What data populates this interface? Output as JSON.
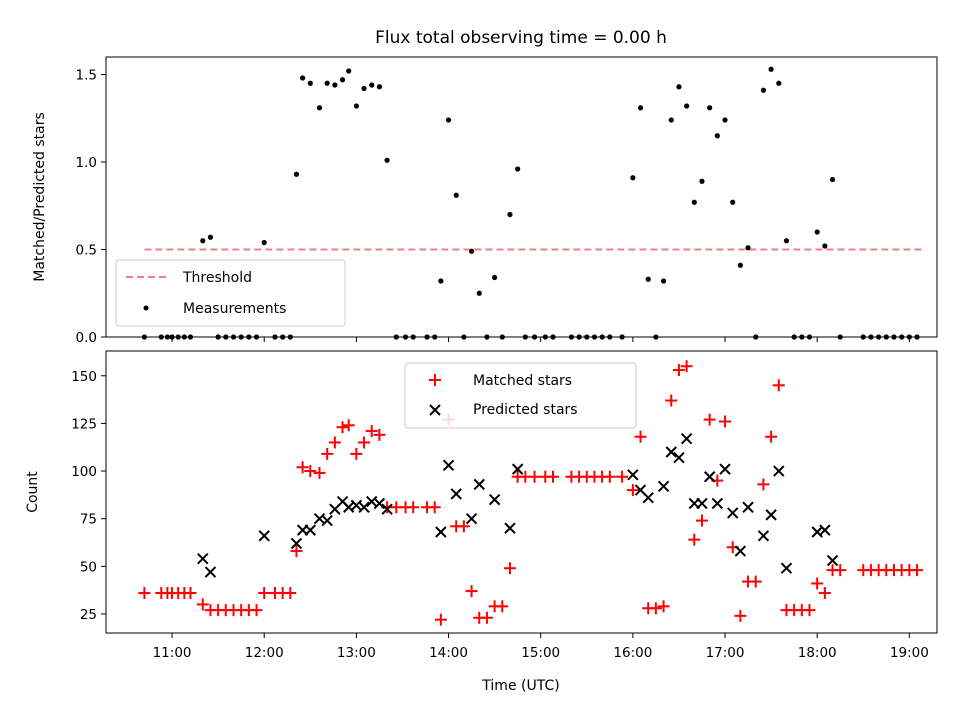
{
  "chart_data": [
    {
      "type": "scatter",
      "title": "Flux total observing time = 0.00 h",
      "xlabel": "",
      "ylabel": "Matched/Predicted stars",
      "ylim": [
        0,
        1.6
      ],
      "xlim": [
        "10:17",
        "19:18"
      ],
      "yticks": [
        "0.0",
        "0.5",
        "1.0",
        "1.5"
      ],
      "grid": false,
      "legend": "lower-left",
      "threshold": {
        "name": "Threshold",
        "value": 0.5,
        "x_from": "10:42",
        "x_to": "19:09",
        "color": "#f08080"
      },
      "series": [
        {
          "name": "Measurements",
          "color": "#000000",
          "marker": "dot",
          "points": [
            [
              "10:42",
              0
            ],
            [
              "10:53",
              0
            ],
            [
              "10:57",
              0
            ],
            [
              "11:00",
              0
            ],
            [
              "11:04",
              0
            ],
            [
              "11:08",
              0
            ],
            [
              "11:12",
              0
            ],
            [
              "11:20",
              0.55
            ],
            [
              "11:25",
              0.57
            ],
            [
              "11:30",
              0
            ],
            [
              "11:35",
              0
            ],
            [
              "11:40",
              0
            ],
            [
              "11:45",
              0
            ],
            [
              "11:50",
              0
            ],
            [
              "11:55",
              0
            ],
            [
              "12:00",
              0.54
            ],
            [
              "12:07",
              0
            ],
            [
              "12:12",
              0
            ],
            [
              "12:17",
              0
            ],
            [
              "12:21",
              0.93
            ],
            [
              "12:25",
              1.48
            ],
            [
              "12:30",
              1.45
            ],
            [
              "12:36",
              1.31
            ],
            [
              "12:41",
              1.45
            ],
            [
              "12:46",
              1.44
            ],
            [
              "12:51",
              1.47
            ],
            [
              "12:55",
              1.52
            ],
            [
              "13:00",
              1.32
            ],
            [
              "13:05",
              1.42
            ],
            [
              "13:10",
              1.44
            ],
            [
              "13:15",
              1.43
            ],
            [
              "13:20",
              1.01
            ],
            [
              "13:26",
              0
            ],
            [
              "13:32",
              0
            ],
            [
              "13:37",
              0
            ],
            [
              "13:46",
              0
            ],
            [
              "13:51",
              0
            ],
            [
              "13:55",
              0.32
            ],
            [
              "14:00",
              1.24
            ],
            [
              "14:05",
              0.81
            ],
            [
              "14:10",
              0
            ],
            [
              "14:15",
              0.49
            ],
            [
              "14:20",
              0.25
            ],
            [
              "14:25",
              0
            ],
            [
              "14:30",
              0.34
            ],
            [
              "14:35",
              0
            ],
            [
              "14:40",
              0.7
            ],
            [
              "14:45",
              0.96
            ],
            [
              "14:50",
              0
            ],
            [
              "14:56",
              0
            ],
            [
              "15:03",
              0
            ],
            [
              "15:08",
              0
            ],
            [
              "15:20",
              0
            ],
            [
              "15:25",
              0
            ],
            [
              "15:30",
              0
            ],
            [
              "15:35",
              0
            ],
            [
              "15:40",
              0
            ],
            [
              "15:45",
              0
            ],
            [
              "15:53",
              0
            ],
            [
              "16:00",
              0.91
            ],
            [
              "16:05",
              1.31
            ],
            [
              "16:10",
              0.33
            ],
            [
              "16:15",
              0
            ],
            [
              "16:20",
              0.32
            ],
            [
              "16:25",
              1.24
            ],
            [
              "16:30",
              1.43
            ],
            [
              "16:35",
              1.32
            ],
            [
              "16:40",
              0.77
            ],
            [
              "16:45",
              0.89
            ],
            [
              "16:50",
              1.31
            ],
            [
              "16:55",
              1.15
            ],
            [
              "17:00",
              1.24
            ],
            [
              "17:05",
              0.77
            ],
            [
              "17:10",
              0.41
            ],
            [
              "17:15",
              0.51
            ],
            [
              "17:20",
              0
            ],
            [
              "17:25",
              1.41
            ],
            [
              "17:30",
              1.53
            ],
            [
              "17:35",
              1.45
            ],
            [
              "17:40",
              0.55
            ],
            [
              "17:45",
              0
            ],
            [
              "17:50",
              0
            ],
            [
              "17:55",
              0
            ],
            [
              "18:00",
              0.6
            ],
            [
              "18:05",
              0.52
            ],
            [
              "18:10",
              0.9
            ],
            [
              "18:15",
              0
            ],
            [
              "18:30",
              0
            ],
            [
              "18:35",
              0
            ],
            [
              "18:40",
              0
            ],
            [
              "18:45",
              0
            ],
            [
              "18:50",
              0
            ],
            [
              "18:55",
              0
            ],
            [
              "19:00",
              0
            ],
            [
              "19:05",
              0
            ]
          ]
        }
      ]
    },
    {
      "type": "scatter",
      "title": "",
      "xlabel": "Time (UTC)",
      "ylabel": "Count",
      "ylim": [
        15,
        163
      ],
      "xlim": [
        "10:17",
        "19:18"
      ],
      "xticks": [
        "11:00",
        "12:00",
        "13:00",
        "14:00",
        "15:00",
        "16:00",
        "17:00",
        "18:00",
        "19:00"
      ],
      "yticks": [
        "25",
        "50",
        "75",
        "100",
        "125",
        "150"
      ],
      "grid": false,
      "legend": "top-center",
      "series": [
        {
          "name": "Matched stars",
          "color": "#ff0000",
          "marker": "plus",
          "points": [
            [
              "10:42",
              36
            ],
            [
              "10:53",
              36
            ],
            [
              "10:57",
              36
            ],
            [
              "11:00",
              36
            ],
            [
              "11:04",
              36
            ],
            [
              "11:08",
              36
            ],
            [
              "11:12",
              36
            ],
            [
              "11:20",
              30
            ],
            [
              "11:25",
              27
            ],
            [
              "11:30",
              27
            ],
            [
              "11:35",
              27
            ],
            [
              "11:40",
              27
            ],
            [
              "11:45",
              27
            ],
            [
              "11:50",
              27
            ],
            [
              "11:55",
              27
            ],
            [
              "12:00",
              36
            ],
            [
              "12:07",
              36
            ],
            [
              "12:12",
              36
            ],
            [
              "12:17",
              36
            ],
            [
              "12:21",
              58
            ],
            [
              "12:25",
              102
            ],
            [
              "12:30",
              100
            ],
            [
              "12:36",
              99
            ],
            [
              "12:41",
              109
            ],
            [
              "12:46",
              115
            ],
            [
              "12:51",
              123
            ],
            [
              "12:55",
              124
            ],
            [
              "13:00",
              109
            ],
            [
              "13:05",
              115
            ],
            [
              "13:10",
              121
            ],
            [
              "13:15",
              119
            ],
            [
              "13:20",
              81
            ],
            [
              "13:26",
              81
            ],
            [
              "13:32",
              81
            ],
            [
              "13:37",
              81
            ],
            [
              "13:46",
              81
            ],
            [
              "13:51",
              81
            ],
            [
              "13:55",
              22
            ],
            [
              "14:00",
              127
            ],
            [
              "14:05",
              71
            ],
            [
              "14:10",
              71
            ],
            [
              "14:15",
              37
            ],
            [
              "14:20",
              23
            ],
            [
              "14:25",
              23
            ],
            [
              "14:30",
              29
            ],
            [
              "14:35",
              29
            ],
            [
              "14:40",
              49
            ],
            [
              "14:45",
              97
            ],
            [
              "14:50",
              97
            ],
            [
              "14:56",
              97
            ],
            [
              "15:03",
              97
            ],
            [
              "15:08",
              97
            ],
            [
              "15:20",
              97
            ],
            [
              "15:25",
              97
            ],
            [
              "15:30",
              97
            ],
            [
              "15:35",
              97
            ],
            [
              "15:40",
              97
            ],
            [
              "15:45",
              97
            ],
            [
              "15:53",
              97
            ],
            [
              "16:00",
              90
            ],
            [
              "16:05",
              118
            ],
            [
              "16:10",
              28
            ],
            [
              "16:15",
              28
            ],
            [
              "16:20",
              29
            ],
            [
              "16:25",
              137
            ],
            [
              "16:30",
              153
            ],
            [
              "16:35",
              155
            ],
            [
              "16:40",
              64
            ],
            [
              "16:45",
              74
            ],
            [
              "16:50",
              127
            ],
            [
              "16:55",
              95
            ],
            [
              "17:00",
              126
            ],
            [
              "17:05",
              60
            ],
            [
              "17:10",
              24
            ],
            [
              "17:15",
              42
            ],
            [
              "17:20",
              42
            ],
            [
              "17:25",
              93
            ],
            [
              "17:30",
              118
            ],
            [
              "17:35",
              145
            ],
            [
              "17:40",
              27
            ],
            [
              "17:45",
              27
            ],
            [
              "17:50",
              27
            ],
            [
              "17:55",
              27
            ],
            [
              "18:00",
              41
            ],
            [
              "18:05",
              36
            ],
            [
              "18:10",
              48
            ],
            [
              "18:15",
              48
            ],
            [
              "18:30",
              48
            ],
            [
              "18:35",
              48
            ],
            [
              "18:40",
              48
            ],
            [
              "18:45",
              48
            ],
            [
              "18:50",
              48
            ],
            [
              "18:55",
              48
            ],
            [
              "19:00",
              48
            ],
            [
              "19:05",
              48
            ]
          ]
        },
        {
          "name": "Predicted stars",
          "color": "#000000",
          "marker": "x",
          "points": [
            [
              "11:20",
              54
            ],
            [
              "11:25",
              47
            ],
            [
              "12:00",
              66
            ],
            [
              "12:21",
              62
            ],
            [
              "12:25",
              69
            ],
            [
              "12:30",
              69
            ],
            [
              "12:36",
              75
            ],
            [
              "12:41",
              74
            ],
            [
              "12:46",
              80
            ],
            [
              "12:51",
              84
            ],
            [
              "12:55",
              81
            ],
            [
              "13:00",
              82
            ],
            [
              "13:05",
              81
            ],
            [
              "13:10",
              84
            ],
            [
              "13:15",
              83
            ],
            [
              "13:20",
              80
            ],
            [
              "13:55",
              68
            ],
            [
              "14:00",
              103
            ],
            [
              "14:05",
              88
            ],
            [
              "14:15",
              75
            ],
            [
              "14:20",
              93
            ],
            [
              "14:30",
              85
            ],
            [
              "14:40",
              70
            ],
            [
              "14:45",
              101
            ],
            [
              "16:00",
              98
            ],
            [
              "16:05",
              90
            ],
            [
              "16:10",
              86
            ],
            [
              "16:20",
              92
            ],
            [
              "16:25",
              110
            ],
            [
              "16:30",
              107
            ],
            [
              "16:35",
              117
            ],
            [
              "16:40",
              83
            ],
            [
              "16:45",
              83
            ],
            [
              "16:50",
              97
            ],
            [
              "16:55",
              83
            ],
            [
              "17:00",
              101
            ],
            [
              "17:05",
              78
            ],
            [
              "17:10",
              58
            ],
            [
              "17:15",
              81
            ],
            [
              "17:25",
              66
            ],
            [
              "17:30",
              77
            ],
            [
              "17:35",
              100
            ],
            [
              "17:40",
              49
            ],
            [
              "18:00",
              68
            ],
            [
              "18:05",
              69
            ],
            [
              "18:10",
              53
            ]
          ]
        }
      ]
    }
  ]
}
